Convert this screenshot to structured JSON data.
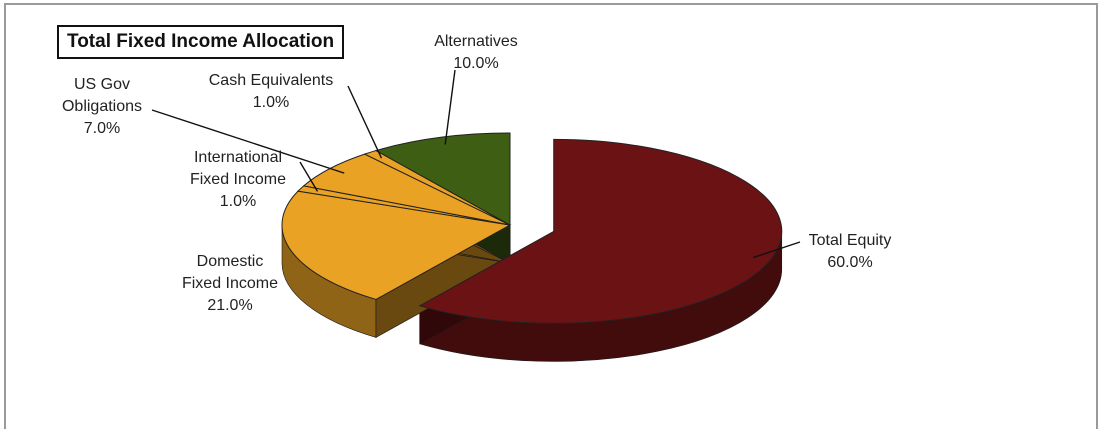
{
  "chart_data": {
    "type": "pie",
    "title": "Total Fixed Income Allocation",
    "slices": [
      {
        "label_lines": [
          "Total Equity"
        ],
        "value_text": "60.0%",
        "value": 60.0,
        "color": "#6b1214",
        "exploded": true
      },
      {
        "label_lines": [
          "Domestic",
          "Fixed Income"
        ],
        "value_text": "21.0%",
        "value": 21.0,
        "color": "#e9a224",
        "exploded": false
      },
      {
        "label_lines": [
          "International",
          "Fixed Income"
        ],
        "value_text": "1.0%",
        "value": 1.0,
        "color": "#e9a224",
        "exploded": false
      },
      {
        "label_lines": [
          "US Gov",
          "Obligations"
        ],
        "value_text": "7.0%",
        "value": 7.0,
        "color": "#e9a224",
        "exploded": false
      },
      {
        "label_lines": [
          "Cash Equivalents"
        ],
        "value_text": "1.0%",
        "value": 1.0,
        "color": "#e9a224",
        "exploded": false
      },
      {
        "label_lines": [
          "Alternatives"
        ],
        "value_text": "10.0%",
        "value": 10.0,
        "color": "#3e5e14",
        "exploded": false
      }
    ]
  }
}
